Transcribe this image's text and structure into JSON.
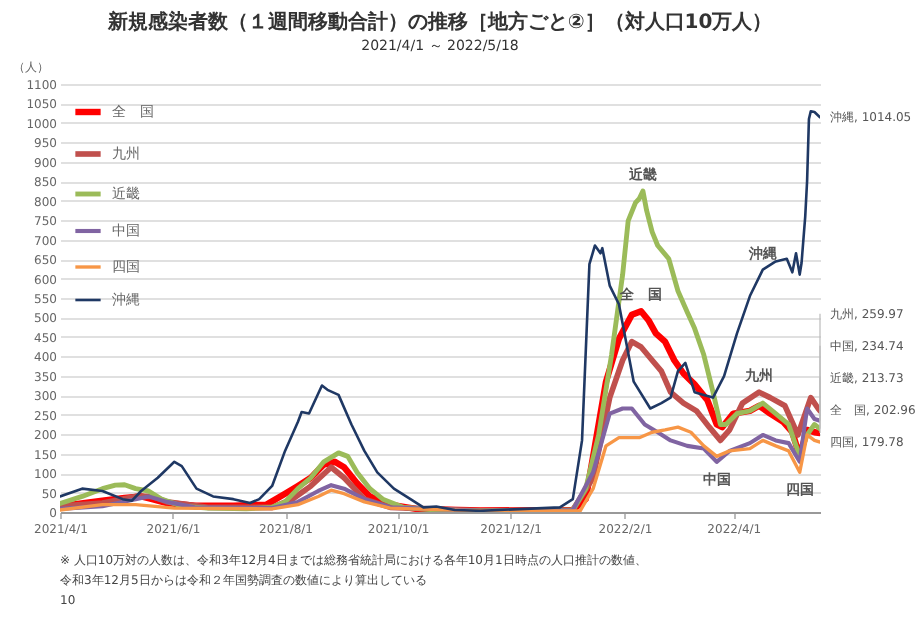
{
  "chart_data": {
    "type": "line",
    "title": "新規感染者数（１週間移動合計）の推移［地方ごと②］（対人口10万人）",
    "subtitle": "2021/4/1 ～ 2022/5/18",
    "ylabel": "（人）",
    "xlim": [
      "2021-04-01",
      "2022-05-18"
    ],
    "ylim": [
      0,
      1100
    ],
    "yticks": [
      0,
      50,
      100,
      150,
      200,
      250,
      300,
      350,
      400,
      450,
      500,
      550,
      600,
      650,
      700,
      750,
      800,
      850,
      900,
      950,
      1000,
      1050,
      1100
    ],
    "xticks": [
      {
        "value": "2021-04-01",
        "label": "2021/4/1"
      },
      {
        "value": "2021-06-01",
        "label": "2021/6/1"
      },
      {
        "value": "2021-08-01",
        "label": "2021/8/1"
      },
      {
        "value": "2021-10-01",
        "label": "2021/10/1"
      },
      {
        "value": "2021-12-01",
        "label": "2021/12/1"
      },
      {
        "value": "2022-02-01",
        "label": "2022/2/1"
      },
      {
        "value": "2022-04-01",
        "label": "2022/4/1"
      }
    ],
    "grid": "y",
    "legend": "top left",
    "series": [
      {
        "name": "全　国",
        "color": "#ff0000",
        "x": [
          "2021-04-01",
          "2021-04-24",
          "2021-05-06",
          "2021-05-15",
          "2021-05-21",
          "2021-05-29",
          "2021-06-13",
          "2021-07-04",
          "2021-07-22",
          "2021-08-01",
          "2021-08-08",
          "2021-08-15",
          "2021-08-22",
          "2021-08-28",
          "2021-09-02",
          "2021-09-09",
          "2021-09-16",
          "2021-09-27",
          "2021-10-11",
          "2021-11-15",
          "2022-01-04",
          "2022-01-11",
          "2022-01-16",
          "2022-01-22",
          "2022-01-29",
          "2022-02-05",
          "2022-02-10",
          "2022-02-14",
          "2022-02-18",
          "2022-02-23",
          "2022-02-28",
          "2022-03-05",
          "2022-03-11",
          "2022-03-18",
          "2022-03-23",
          "2022-03-26",
          "2022-04-01",
          "2022-04-10",
          "2022-04-15",
          "2022-04-21",
          "2022-04-28",
          "2022-05-03",
          "2022-05-07",
          "2022-05-11",
          "2022-05-15",
          "2022-05-18"
        ],
        "values": [
          15,
          29,
          36,
          40,
          33,
          23,
          16,
          16,
          19,
          47,
          67,
          88,
          122,
          129,
          115,
          74,
          40,
          19,
          8,
          4,
          5,
          33,
          170,
          335,
          445,
          507,
          516,
          493,
          459,
          438,
          390,
          356,
          328,
          287,
          225,
          218,
          253,
          260,
          273,
          253,
          232,
          205,
          143,
          211,
          205,
          202.96
        ]
      },
      {
        "name": "九州",
        "color": "#c0504d",
        "x": [
          "2021-04-01",
          "2021-04-24",
          "2021-05-12",
          "2021-05-21",
          "2021-05-29",
          "2021-06-20",
          "2021-07-25",
          "2021-08-05",
          "2021-08-15",
          "2021-08-26",
          "2021-09-02",
          "2021-09-13",
          "2021-09-27",
          "2021-11-15",
          "2022-01-04",
          "2022-01-15",
          "2022-01-24",
          "2022-01-31",
          "2022-02-05",
          "2022-02-10",
          "2022-02-16",
          "2022-02-21",
          "2022-02-26",
          "2022-03-05",
          "2022-03-12",
          "2022-03-19",
          "2022-03-25",
          "2022-03-30",
          "2022-04-06",
          "2022-04-15",
          "2022-04-21",
          "2022-04-29",
          "2022-05-06",
          "2022-05-10",
          "2022-05-13",
          "2022-05-17",
          "2022-05-18"
        ],
        "values": [
          15,
          23,
          40,
          40,
          26,
          12,
          12,
          33,
          67,
          115,
          88,
          33,
          12,
          3,
          5,
          88,
          294,
          390,
          438,
          424,
          390,
          362,
          308,
          280,
          260,
          218,
          184,
          211,
          280,
          308,
          294,
          273,
          198,
          253,
          294,
          266,
          259.97
        ]
      },
      {
        "name": "近畿",
        "color": "#9bbb59",
        "x": [
          "2021-04-01",
          "2021-04-13",
          "2021-04-24",
          "2021-05-01",
          "2021-05-06",
          "2021-05-12",
          "2021-05-19",
          "2021-05-26",
          "2021-06-06",
          "2021-06-20",
          "2021-07-11",
          "2021-07-25",
          "2021-08-01",
          "2021-08-08",
          "2021-08-15",
          "2021-08-22",
          "2021-08-30",
          "2021-09-04",
          "2021-09-09",
          "2021-09-16",
          "2021-09-23",
          "2021-10-04",
          "2021-10-22",
          "2021-11-15",
          "2022-01-04",
          "2022-01-11",
          "2022-01-18",
          "2022-01-25",
          "2022-01-31",
          "2022-02-03",
          "2022-02-07",
          "2022-02-09",
          "2022-02-11",
          "2022-02-13",
          "2022-02-16",
          "2022-02-19",
          "2022-02-25",
          "2022-03-02",
          "2022-03-07",
          "2022-03-11",
          "2022-03-16",
          "2022-03-21",
          "2022-03-25",
          "2022-03-28",
          "2022-04-03",
          "2022-04-10",
          "2022-04-17",
          "2022-04-24",
          "2022-05-01",
          "2022-05-07",
          "2022-05-11",
          "2022-05-15",
          "2022-05-18"
        ],
        "values": [
          22,
          40,
          60,
          69,
          70,
          60,
          54,
          33,
          15,
          10,
          8,
          12,
          26,
          60,
          88,
          129,
          152,
          143,
          102,
          60,
          33,
          12,
          5,
          3,
          5,
          60,
          198,
          404,
          610,
          748,
          795,
          805,
          825,
          775,
          720,
          685,
          651,
          568,
          514,
          472,
          404,
          308,
          225,
          225,
          253,
          260,
          280,
          253,
          225,
          143,
          198,
          225,
          213.73
        ]
      },
      {
        "name": "中国",
        "color": "#8064a2",
        "x": [
          "2021-04-01",
          "2021-04-24",
          "2021-05-12",
          "2021-05-19",
          "2021-05-29",
          "2021-06-13",
          "2021-07-25",
          "2021-08-08",
          "2021-08-19",
          "2021-08-26",
          "2021-09-02",
          "2021-09-13",
          "2021-09-27",
          "2021-11-15",
          "2022-01-04",
          "2022-01-15",
          "2022-01-24",
          "2022-01-31",
          "2022-02-05",
          "2022-02-12",
          "2022-02-19",
          "2022-02-26",
          "2022-03-07",
          "2022-03-16",
          "2022-03-23",
          "2022-03-30",
          "2022-04-10",
          "2022-04-17",
          "2022-04-24",
          "2022-05-01",
          "2022-05-07",
          "2022-05-11",
          "2022-05-15",
          "2022-05-18"
        ],
        "values": [
          8,
          15,
          33,
          40,
          26,
          12,
          10,
          26,
          54,
          69,
          60,
          33,
          12,
          3,
          5,
          102,
          253,
          266,
          266,
          225,
          205,
          184,
          170,
          163,
          129,
          157,
          177,
          198,
          184,
          177,
          129,
          266,
          239,
          234.74
        ]
      },
      {
        "name": "四国",
        "color": "#f79646",
        "x": [
          "2021-04-01",
          "2021-04-24",
          "2021-05-12",
          "2021-05-21",
          "2021-06-02",
          "2021-07-25",
          "2021-08-08",
          "2021-08-19",
          "2021-08-26",
          "2021-09-02",
          "2021-09-13",
          "2021-09-27",
          "2021-11-15",
          "2022-01-08",
          "2022-01-15",
          "2022-01-22",
          "2022-01-29",
          "2022-02-09",
          "2022-02-16",
          "2022-02-23",
          "2022-03-02",
          "2022-03-09",
          "2022-03-16",
          "2022-03-23",
          "2022-03-30",
          "2022-04-10",
          "2022-04-17",
          "2022-04-24",
          "2022-05-01",
          "2022-05-07",
          "2022-05-11",
          "2022-05-15",
          "2022-05-18"
        ],
        "values": [
          5,
          19,
          19,
          15,
          10,
          8,
          19,
          40,
          56,
          47,
          26,
          10,
          3,
          3,
          60,
          170,
          191,
          191,
          205,
          211,
          218,
          205,
          170,
          143,
          157,
          163,
          184,
          170,
          157,
          102,
          198,
          184,
          179.78
        ]
      },
      {
        "name": "沖縄",
        "color": "#1f3864",
        "x": [
          "2021-04-01",
          "2021-04-13",
          "2021-04-24",
          "2021-05-05",
          "2021-05-10",
          "2021-05-15",
          "2021-05-24",
          "2021-06-02",
          "2021-06-06",
          "2021-06-14",
          "2021-06-23",
          "2021-07-04",
          "2021-07-13",
          "2021-07-18",
          "2021-07-25",
          "2021-08-01",
          "2021-08-08",
          "2021-08-10",
          "2021-08-14",
          "2021-08-21",
          "2021-08-24",
          "2021-08-30",
          "2021-09-06",
          "2021-09-13",
          "2021-09-20",
          "2021-09-29",
          "2021-10-08",
          "2021-10-15",
          "2021-10-22",
          "2021-11-01",
          "2021-11-15",
          "2021-12-28",
          "2022-01-04",
          "2022-01-09",
          "2022-01-13",
          "2022-01-16",
          "2022-01-19",
          "2022-01-20",
          "2022-01-24",
          "2022-01-29",
          "2022-02-06",
          "2022-02-15",
          "2022-02-21",
          "2022-02-26",
          "2022-03-02",
          "2022-03-06",
          "2022-03-11",
          "2022-03-16",
          "2022-03-21",
          "2022-03-27",
          "2022-04-03",
          "2022-04-10",
          "2022-04-17",
          "2022-04-24",
          "2022-04-30",
          "2022-05-03",
          "2022-05-05",
          "2022-05-07",
          "2022-05-08",
          "2022-05-10",
          "2022-05-11",
          "2022-05-12",
          "2022-05-13",
          "2022-05-15",
          "2022-05-18"
        ],
        "values": [
          40,
          60,
          54,
          33,
          29,
          54,
          88,
          129,
          118,
          60,
          40,
          33,
          23,
          33,
          67,
          157,
          232,
          257,
          253,
          325,
          314,
          301,
          225,
          157,
          102,
          60,
          33,
          12,
          14,
          5,
          3,
          12,
          33,
          184,
          637,
          685,
          665,
          678,
          582,
          534,
          335,
          266,
          280,
          294,
          362,
          383,
          308,
          301,
          294,
          349,
          459,
          555,
          623,
          644,
          651,
          616,
          665,
          610,
          640,
          760,
          850,
          1010,
          1030,
          1028,
          1014.05
        ]
      }
    ],
    "annotations": [
      {
        "text": "近畿",
        "x": "2022-02-11",
        "y": 825
      },
      {
        "text": "全　国",
        "x": "2022-02-10",
        "y": 516
      },
      {
        "text": "沖縄",
        "x": "2022-04-17",
        "y": 623
      },
      {
        "text": "九州",
        "x": "2022-04-15",
        "y": 308
      },
      {
        "text": "中国",
        "x": "2022-03-23",
        "y": 129
      },
      {
        "text": "四国",
        "x": "2022-05-07",
        "y": 102
      },
      {
        "text": "沖縄, 1014.05",
        "x": "2022-05-18",
        "y": 1014.05
      },
      {
        "text": "九州, 259.97",
        "x": "2022-05-18",
        "y": 259.97
      },
      {
        "text": "中国, 234.74",
        "x": "2022-05-18",
        "y": 234.74
      },
      {
        "text": "近畿, 213.73",
        "x": "2022-05-18",
        "y": 213.73
      },
      {
        "text": "全　国, 202.96",
        "x": "2022-05-18",
        "y": 202.96
      },
      {
        "text": "四国, 179.78",
        "x": "2022-05-18",
        "y": 179.78
      },
      "※ 人口10万対の人数は、令和3年12月4日までは総務省統計局における各年10月1日時点の人口推計の数値、",
      "令和3年12月5日からは令和２年国勢調査の数値により算出している",
      "10"
    ]
  }
}
